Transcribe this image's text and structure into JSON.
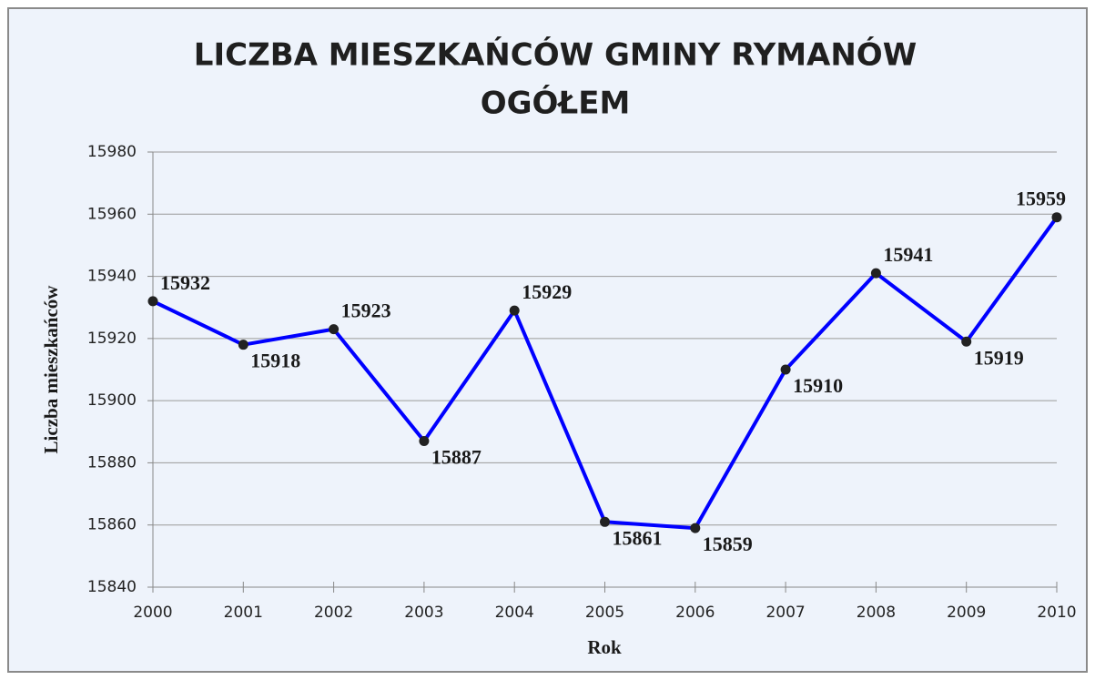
{
  "chart_data": {
    "type": "line",
    "title": "LICZBA MIESZKAŃCÓW GMINY RYMANÓW",
    "subtitle": "OGÓŁEM",
    "x_label": "Rok",
    "y_label": "Liczba mieszkańców",
    "x": [
      2000,
      2001,
      2002,
      2003,
      2004,
      2005,
      2006,
      2007,
      2008,
      2009,
      2010
    ],
    "series": [
      {
        "name": "Liczba mieszkańców",
        "color": "#0000ff",
        "values": [
          15932,
          15918,
          15923,
          15887,
          15929,
          15861,
          15859,
          15910,
          15941,
          15919,
          15959
        ]
      }
    ],
    "xlim": [
      2000,
      2010
    ],
    "xticks": [
      2000,
      2001,
      2002,
      2003,
      2004,
      2005,
      2006,
      2007,
      2008,
      2009,
      2010
    ],
    "ylim": [
      15840,
      15980
    ],
    "yticks": [
      15840,
      15860,
      15880,
      15900,
      15920,
      15940,
      15960,
      15980
    ],
    "grid": true
  }
}
